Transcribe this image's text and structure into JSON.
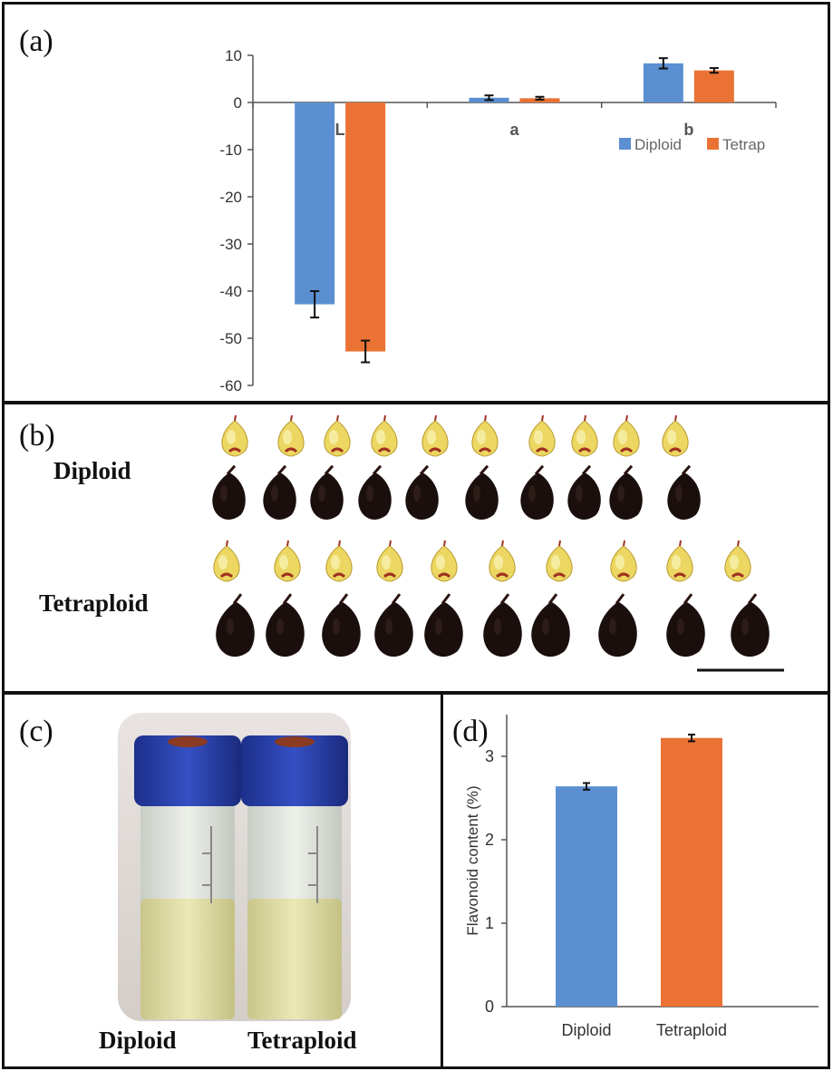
{
  "panels": {
    "a": {
      "label": "(a)"
    },
    "b": {
      "label": "(b)",
      "row_labels": [
        "Diploid",
        "Tetraploid"
      ]
    },
    "c": {
      "label": "(c)",
      "vial_labels": [
        "Diploid",
        "Tetraploid"
      ]
    },
    "d": {
      "label": "(d)"
    }
  },
  "colors": {
    "diploid": "#5B8FD1",
    "tetraploid": "#EA7234",
    "axis": "#555555",
    "text": "#333333"
  },
  "chart_data": [
    {
      "id": "a",
      "type": "bar",
      "title": "",
      "categories": [
        "L",
        "a",
        "b"
      ],
      "series": [
        {
          "name": "Diploid",
          "values": [
            -42.8,
            1.0,
            8.3
          ],
          "errors": [
            2.8,
            0.5,
            1.1
          ]
        },
        {
          "name": "Tetrap",
          "values": [
            -52.8,
            0.9,
            6.8
          ],
          "errors": [
            2.3,
            0.3,
            0.5
          ]
        }
      ],
      "ylim": [
        -60,
        10
      ],
      "yticks": [
        "10",
        "0",
        "-10",
        "-20",
        "-30",
        "-40",
        "-50",
        "-60"
      ],
      "xlabel": "",
      "ylabel": "",
      "legend": "top-right"
    },
    {
      "id": "d",
      "type": "bar",
      "title": "",
      "categories": [
        "Diploid",
        "Tetraploid"
      ],
      "values": [
        2.64,
        3.22
      ],
      "errors": [
        0.04,
        0.04
      ],
      "ylim": [
        0,
        3.5
      ],
      "yticks": [
        "0",
        "1",
        "2",
        "3"
      ],
      "xlabel": "",
      "ylabel": "Flavonoid content (%)"
    }
  ]
}
